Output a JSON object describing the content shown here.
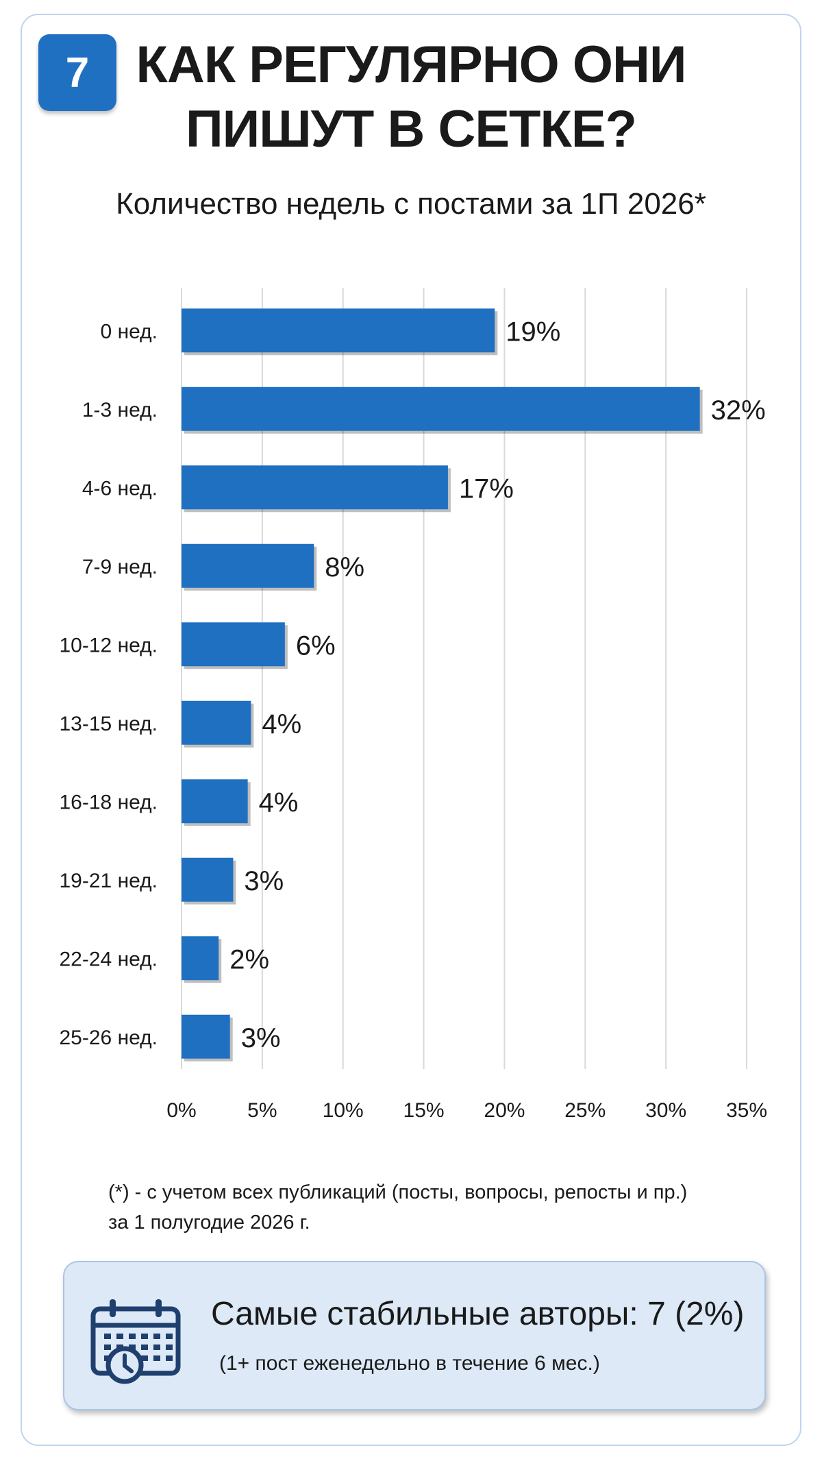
{
  "badge": "7",
  "title": [
    "КАК РЕГУЛЯРНО ОНИ",
    "ПИШУТ В СЕТКЕ?"
  ],
  "subtitle": "Количество недель с постами за 1П 2026*",
  "colors": {
    "bar": "#1f70c1",
    "grid": "#d9d9d9",
    "accent": "#1f70c1",
    "box": "#dde9f6"
  },
  "chart_data": {
    "type": "bar",
    "orientation": "horizontal",
    "categories": [
      "0 нед.",
      "1-3 нед.",
      "4-6 нед.",
      "7-9 нед.",
      "10-12 нед.",
      "13-15 нед.",
      "16-18 нед.",
      "19-21 нед.",
      "22-24 нед.",
      "25-26 нед."
    ],
    "values": [
      19.4,
      32.1,
      16.5,
      8.2,
      6.4,
      4.3,
      4.1,
      3.2,
      2.3,
      3.0
    ],
    "value_labels": [
      "19%",
      "32%",
      "17%",
      "8%",
      "6%",
      "4%",
      "4%",
      "3%",
      "2%",
      "3%"
    ],
    "xlim": [
      0,
      35
    ],
    "xticks": [
      "0%",
      "5%",
      "10%",
      "15%",
      "20%",
      "25%",
      "30%",
      "35%"
    ],
    "grid": true,
    "legend": "none"
  },
  "footnote": [
    "(*) - с учетом всех публикаций (посты, вопросы, репосты и пр.)",
    "за 1 полугодие 2026 г."
  ],
  "info": {
    "icon": "calendar-clock-icon",
    "main": "Самые стабильные авторы: 7 (2%)",
    "sub": "(1+ пост еженедельно в течение 6 мес.)"
  }
}
